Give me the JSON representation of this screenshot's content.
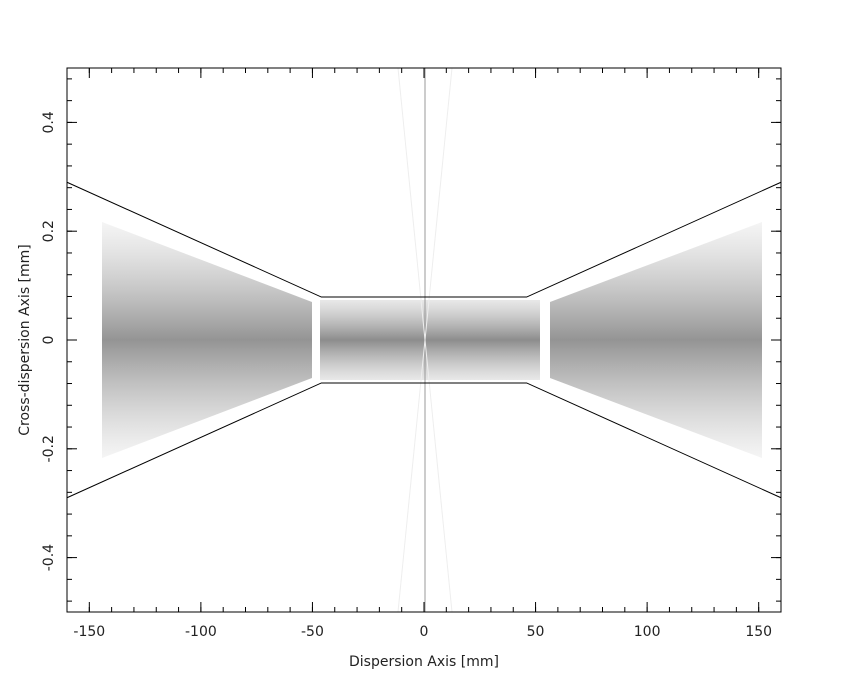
{
  "chart_data": {
    "type": "line",
    "x_label": "Dispersion Axis [mm]",
    "y_label": "Cross-dispersion Axis [mm]",
    "x": [
      -160,
      -46,
      46,
      160
    ],
    "series": [
      {
        "color": "#000000",
        "values": [
          0.29,
          0.079,
          0.079,
          0.29
        ]
      },
      {
        "color": "#000000",
        "values": [
          -0.29,
          -0.079,
          -0.079,
          -0.29
        ]
      }
    ],
    "xlim": [
      -160,
      160
    ],
    "ylim": [
      -0.5,
      0.5
    ],
    "xticks": [
      -150,
      -100,
      -50,
      0,
      50,
      100,
      150
    ],
    "yticks": [
      -0.4,
      -0.2,
      0,
      0.2,
      0.4
    ]
  }
}
